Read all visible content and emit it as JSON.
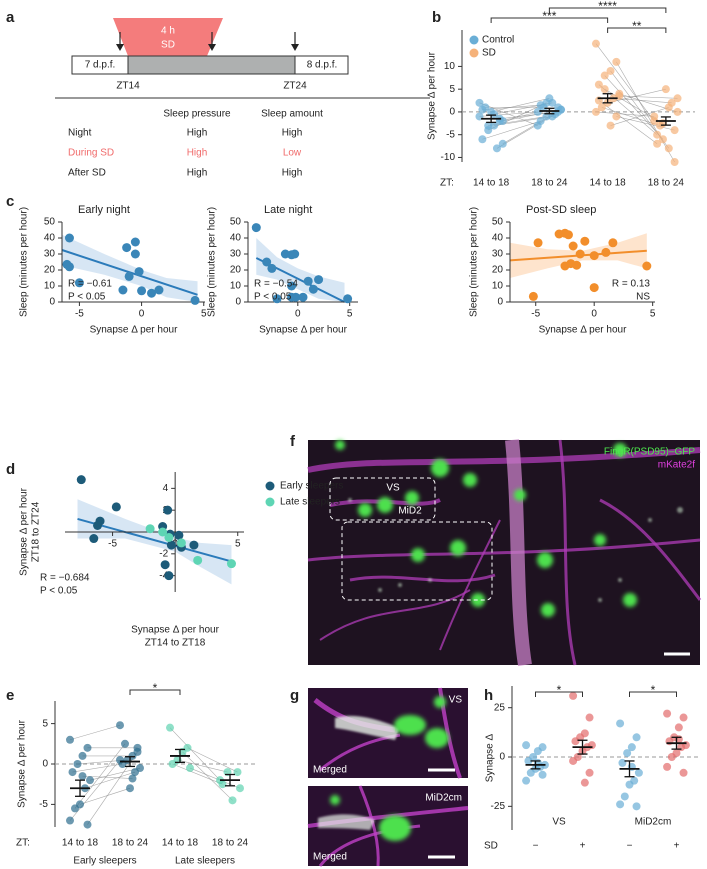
{
  "panel_labels": [
    "a",
    "b",
    "c",
    "d",
    "e",
    "f",
    "g",
    "h"
  ],
  "panel_a": {
    "sd_box": [
      "4 h",
      "SD"
    ],
    "start": "7 d.p.f.",
    "end": "8 d.p.f.",
    "zt": [
      "ZT14",
      "ZT24"
    ],
    "table": {
      "header": [
        "Sleep pressure",
        "Sleep amount"
      ],
      "rows": [
        [
          "Night",
          "High",
          "High"
        ],
        [
          "During SD",
          "High",
          "Low"
        ],
        [
          "After SD",
          "High",
          "High"
        ]
      ]
    }
  },
  "images": {
    "f": {
      "channels": [
        "FingR(PSD95)–GFP",
        "mKate2f"
      ],
      "regions": [
        "VS",
        "MiD2"
      ]
    },
    "g": [
      {
        "region": "VS",
        "caption": "Merged"
      },
      {
        "region": "MiD2cm",
        "caption": "Merged"
      }
    ]
  },
  "chart_data": [
    {
      "type": "strip",
      "ylabel": "Synapse Δ per hour",
      "axis_prefix": "ZT:",
      "categories": [
        "14 to 18",
        "18 to 24",
        "14 to 18",
        "18 to 24"
      ],
      "paired": true,
      "legend": true,
      "series": [
        {
          "name": "Control",
          "color": "#6aaed6",
          "values": [
            [
              -1,
              -2,
              -3,
              -4,
              -6,
              -7,
              -8,
              0,
              1,
              2,
              -1.5,
              -0.5,
              -3,
              0.5,
              -2
            ],
            [
              0,
              1,
              -1,
              2,
              -2,
              0.5,
              -0.5,
              3,
              1,
              -3,
              0,
              2,
              -1,
              1.5,
              0.5
            ]
          ],
          "mean": [
            -1.5,
            0.2
          ],
          "sem": [
            0.8,
            0.6
          ]
        },
        {
          "name": "SD",
          "color": "#f5b27a",
          "values": [
            [
              15,
              11,
              9,
              8,
              6,
              4,
              3,
              2,
              1,
              0,
              -1,
              -3,
              5,
              2.5,
              3.5
            ],
            [
              -2,
              -11,
              -8,
              -6,
              -5,
              0,
              2,
              5,
              -3,
              -1,
              -4,
              1,
              -2.5,
              -7,
              3
            ]
          ],
          "mean": [
            3,
            -2
          ],
          "sem": [
            1,
            0.9
          ]
        }
      ],
      "ylim": [
        -11,
        18
      ],
      "yticks": [
        -10,
        -5,
        0,
        5,
        10
      ],
      "brackets": [
        {
          "label": "****",
          "from": 1,
          "to": 3
        },
        {
          "label": "***",
          "from": 0,
          "to": 2
        },
        {
          "label": "**",
          "from": 2,
          "to": 3
        }
      ]
    },
    {
      "type": "scatter",
      "title": "Early night",
      "xlabel": "Synapse Δ per hour",
      "ylabel": "Sleep (minutes per hour)",
      "annotation": [
        "R = −0.61",
        "P < 0.05"
      ],
      "series": [
        {
          "color": "#3a86b8",
          "x": [
            -5.8,
            -6,
            -5.8,
            -5,
            -1.5,
            -1.2,
            -1,
            -0.5,
            -0.5,
            -0.2,
            0,
            0.8,
            1.4,
            4.3
          ],
          "values": [
            40,
            23.5,
            22,
            12,
            7.5,
            34,
            16,
            37.5,
            30,
            19,
            7,
            5.5,
            7.5,
            1
          ]
        }
      ],
      "fit": {
        "color": "#2b7bba",
        "x": [
          -6.4,
          4.5
        ],
        "y": [
          32.5,
          4.5
        ]
      },
      "band": {
        "color": "#c6dbef",
        "x": [
          -6.4,
          -3,
          0,
          2,
          4.5
        ],
        "upper": [
          42,
          30,
          20,
          15,
          13
        ],
        "lower": [
          23,
          17,
          10,
          3,
          0
        ]
      },
      "xlim": [
        -6.4,
        5.1
      ],
      "xticks": [
        -5,
        0,
        5
      ],
      "ylim": [
        0,
        50
      ],
      "yticks": [
        0,
        10,
        20,
        30,
        40,
        50
      ]
    },
    {
      "type": "scatter",
      "title": "Late night",
      "xlabel": "Synapse Δ per hour",
      "ylabel": "Sleep (minutes per hour)",
      "annotation": [
        "R = −0.54",
        "P < 0.05"
      ],
      "series": [
        {
          "color": "#3a86b8",
          "x": [
            -4,
            -3,
            -2.5,
            -2,
            -1.2,
            -0.6,
            -0.3,
            -0.6,
            -0.6,
            -0.2,
            0.5,
            1,
            1.5,
            2,
            4.8
          ],
          "values": [
            46.5,
            25,
            21,
            2,
            30,
            29.5,
            30,
            10,
            3,
            3,
            3,
            13,
            8,
            14,
            2
          ]
        }
      ],
      "fit": {
        "color": "#2b7bba",
        "x": [
          -4,
          4.5
        ],
        "y": [
          27.5,
          0
        ]
      },
      "band": {
        "color": "#c6dbef",
        "x": [
          -4,
          -2,
          0,
          2,
          4.5
        ],
        "upper": [
          40,
          28,
          21,
          16,
          12
        ],
        "lower": [
          17,
          14,
          8,
          2,
          0
        ]
      },
      "xlim": [
        -4.8,
        5.8
      ],
      "xticks": [
        0,
        5
      ],
      "ylim": [
        0,
        50
      ],
      "yticks": [
        0,
        10,
        20,
        30,
        40,
        50
      ]
    },
    {
      "type": "scatter",
      "title": "Post-SD sleep",
      "xlabel": "Synapse Δ per hour",
      "ylabel": "Sleep (minutes per hour)",
      "annotation": [
        "R = 0.13",
        "NS"
      ],
      "series": [
        {
          "color": "#f28e2b",
          "x": [
            -5.2,
            -4.8,
            -3,
            -2.5,
            -2.2,
            -1.8,
            -2.5,
            -2,
            -1.5,
            -1.2,
            -0.8,
            0,
            0,
            1,
            1.6,
            4.5
          ],
          "values": [
            3.5,
            37,
            42.5,
            43,
            42,
            35,
            22.5,
            24,
            23,
            30,
            38,
            29,
            9,
            31,
            37,
            22.5
          ]
        }
      ],
      "fit": {
        "color": "#f28e2b",
        "x": [
          -7.2,
          4.5
        ],
        "y": [
          26,
          32
        ]
      },
      "band": {
        "color": "#fdd9b8",
        "x": [
          -7.2,
          -4,
          -1,
          2,
          4.5
        ],
        "upper": [
          37,
          33,
          32,
          37,
          43
        ],
        "lower": [
          15,
          21,
          26,
          26,
          21
        ]
      },
      "xlim": [
        -7.2,
        5.2
      ],
      "xticks": [
        -5,
        0,
        5
      ],
      "ylim": [
        0,
        50
      ],
      "yticks": [
        0,
        10,
        20,
        30,
        40,
        50
      ]
    },
    {
      "type": "scatter",
      "centered": true,
      "legend": true,
      "xlabel": [
        "Synapse Δ per hour",
        "ZT14 to ZT18"
      ],
      "ylabel": [
        "Synapse Δ per hour",
        "ZT18 to ZT24"
      ],
      "annotation": [
        "R = −0.684",
        "P < 0.05"
      ],
      "series": [
        {
          "name": "Early sleepers",
          "color": "#1d5b79",
          "x": [
            -7.5,
            -4.7,
            -6,
            -6.2,
            -6.5,
            -0.6,
            -1,
            -0.4,
            -0.3,
            0.3,
            0.5,
            1.5,
            -0.8,
            -0.5
          ],
          "values": [
            4.8,
            2.3,
            1,
            0.6,
            -0.6,
            2,
            0.5,
            -0.2,
            -1.2,
            -0.3,
            -1.4,
            -1.2,
            -3,
            -4
          ]
        },
        {
          "name": "Late sleepers",
          "color": "#5ed5b4",
          "x": [
            -2,
            -1,
            -0.5,
            0.5,
            1.8,
            4.5
          ],
          "values": [
            0.3,
            0,
            -0.5,
            -1,
            -2.6,
            -2.9
          ]
        }
      ],
      "fit": {
        "color": "#2b7bba",
        "x": [
          -7.8,
          4.5
        ],
        "y": [
          1.2,
          -2.7
        ]
      },
      "band": {
        "color": "#c6dbef",
        "x": [
          -7.8,
          -4,
          0,
          2,
          4.5
        ],
        "upper": [
          3,
          1.2,
          -0.5,
          -1,
          -1.2
        ],
        "lower": [
          -0.6,
          -0.6,
          -1.8,
          -3.2,
          -4.8
        ]
      },
      "xlim": [
        -8.8,
        5.5
      ],
      "xticks": [
        -5,
        0,
        5
      ],
      "ylim": [
        -5.5,
        5.5
      ],
      "yticks": [
        -4,
        -2,
        2,
        4
      ]
    },
    {
      "type": "strip",
      "ylabel": "Synapse Δ per hour",
      "axis_prefix": "ZT:",
      "categories": [
        "14 to 18",
        "18 to 24",
        "14 to 18",
        "18 to 24"
      ],
      "paired": true,
      "legend": false,
      "series": [
        {
          "name": "Early sleepers",
          "color": "#2e6e8e",
          "values": [
            [
              3,
              2,
              1,
              0,
              -1,
              -2,
              -3,
              -5,
              -5.5,
              -7,
              -7.5,
              -1.5
            ],
            [
              4.8,
              2,
              1,
              0.5,
              0,
              -0.5,
              -1,
              -3,
              2.5,
              0.5,
              1.5,
              -1.8
            ]
          ],
          "mean": [
            -3,
            0.3
          ],
          "sem": [
            1,
            0.6
          ]
        },
        {
          "name": "Late sleepers",
          "color": "#5fd3b0",
          "values": [
            [
              4.5,
              2,
              1.5,
              0.5,
              0,
              -0.5
            ],
            [
              -2,
              -1,
              -4.5,
              -1,
              -2.5,
              -3
            ]
          ],
          "mean": [
            1,
            -2
          ],
          "sem": [
            0.8,
            0.7
          ]
        }
      ],
      "ylim": [
        -7.8,
        7.8
      ],
      "yticks": [
        -5,
        0,
        5
      ],
      "brackets": [
        {
          "label": "*",
          "from": 1,
          "to": 2
        }
      ]
    },
    {
      "type": "strip",
      "ylabel": "Synapse Δ",
      "axis_prefix": "SD",
      "categories": [
        "−",
        "+",
        "−",
        "+"
      ],
      "paired": false,
      "legend": false,
      "series": [
        {
          "name": "VS",
          "color": [
            "#6aaed6",
            "#e26b6b"
          ],
          "values": [
            [
              6,
              5,
              3,
              0,
              -2,
              -4,
              -5,
              -6,
              -8,
              -12,
              -9,
              -3
            ],
            [
              31,
              20,
              12,
              10,
              8,
              6,
              5,
              3,
              0,
              -2,
              -8,
              -13
            ]
          ],
          "mean": [
            -4,
            5
          ],
          "sem": [
            2,
            3.5
          ]
        },
        {
          "name": "MiD2cm",
          "color": [
            "#6aaed6",
            "#e26b6b"
          ],
          "values": [
            [
              17,
              10,
              5,
              2,
              -3,
              -8,
              -12,
              -14,
              -20,
              -24,
              -25,
              -5
            ],
            [
              22,
              20,
              15,
              10,
              8,
              6,
              5,
              2,
              0,
              -5,
              -8,
              9
            ]
          ],
          "mean": [
            -6,
            7
          ],
          "sem": [
            4,
            3
          ]
        }
      ],
      "ylim": [
        -37,
        36
      ],
      "yticks": [
        -25,
        0,
        25
      ],
      "brackets": [
        {
          "label": "*",
          "from": 0,
          "to": 1
        },
        {
          "label": "*",
          "from": 2,
          "to": 3
        }
      ]
    }
  ]
}
